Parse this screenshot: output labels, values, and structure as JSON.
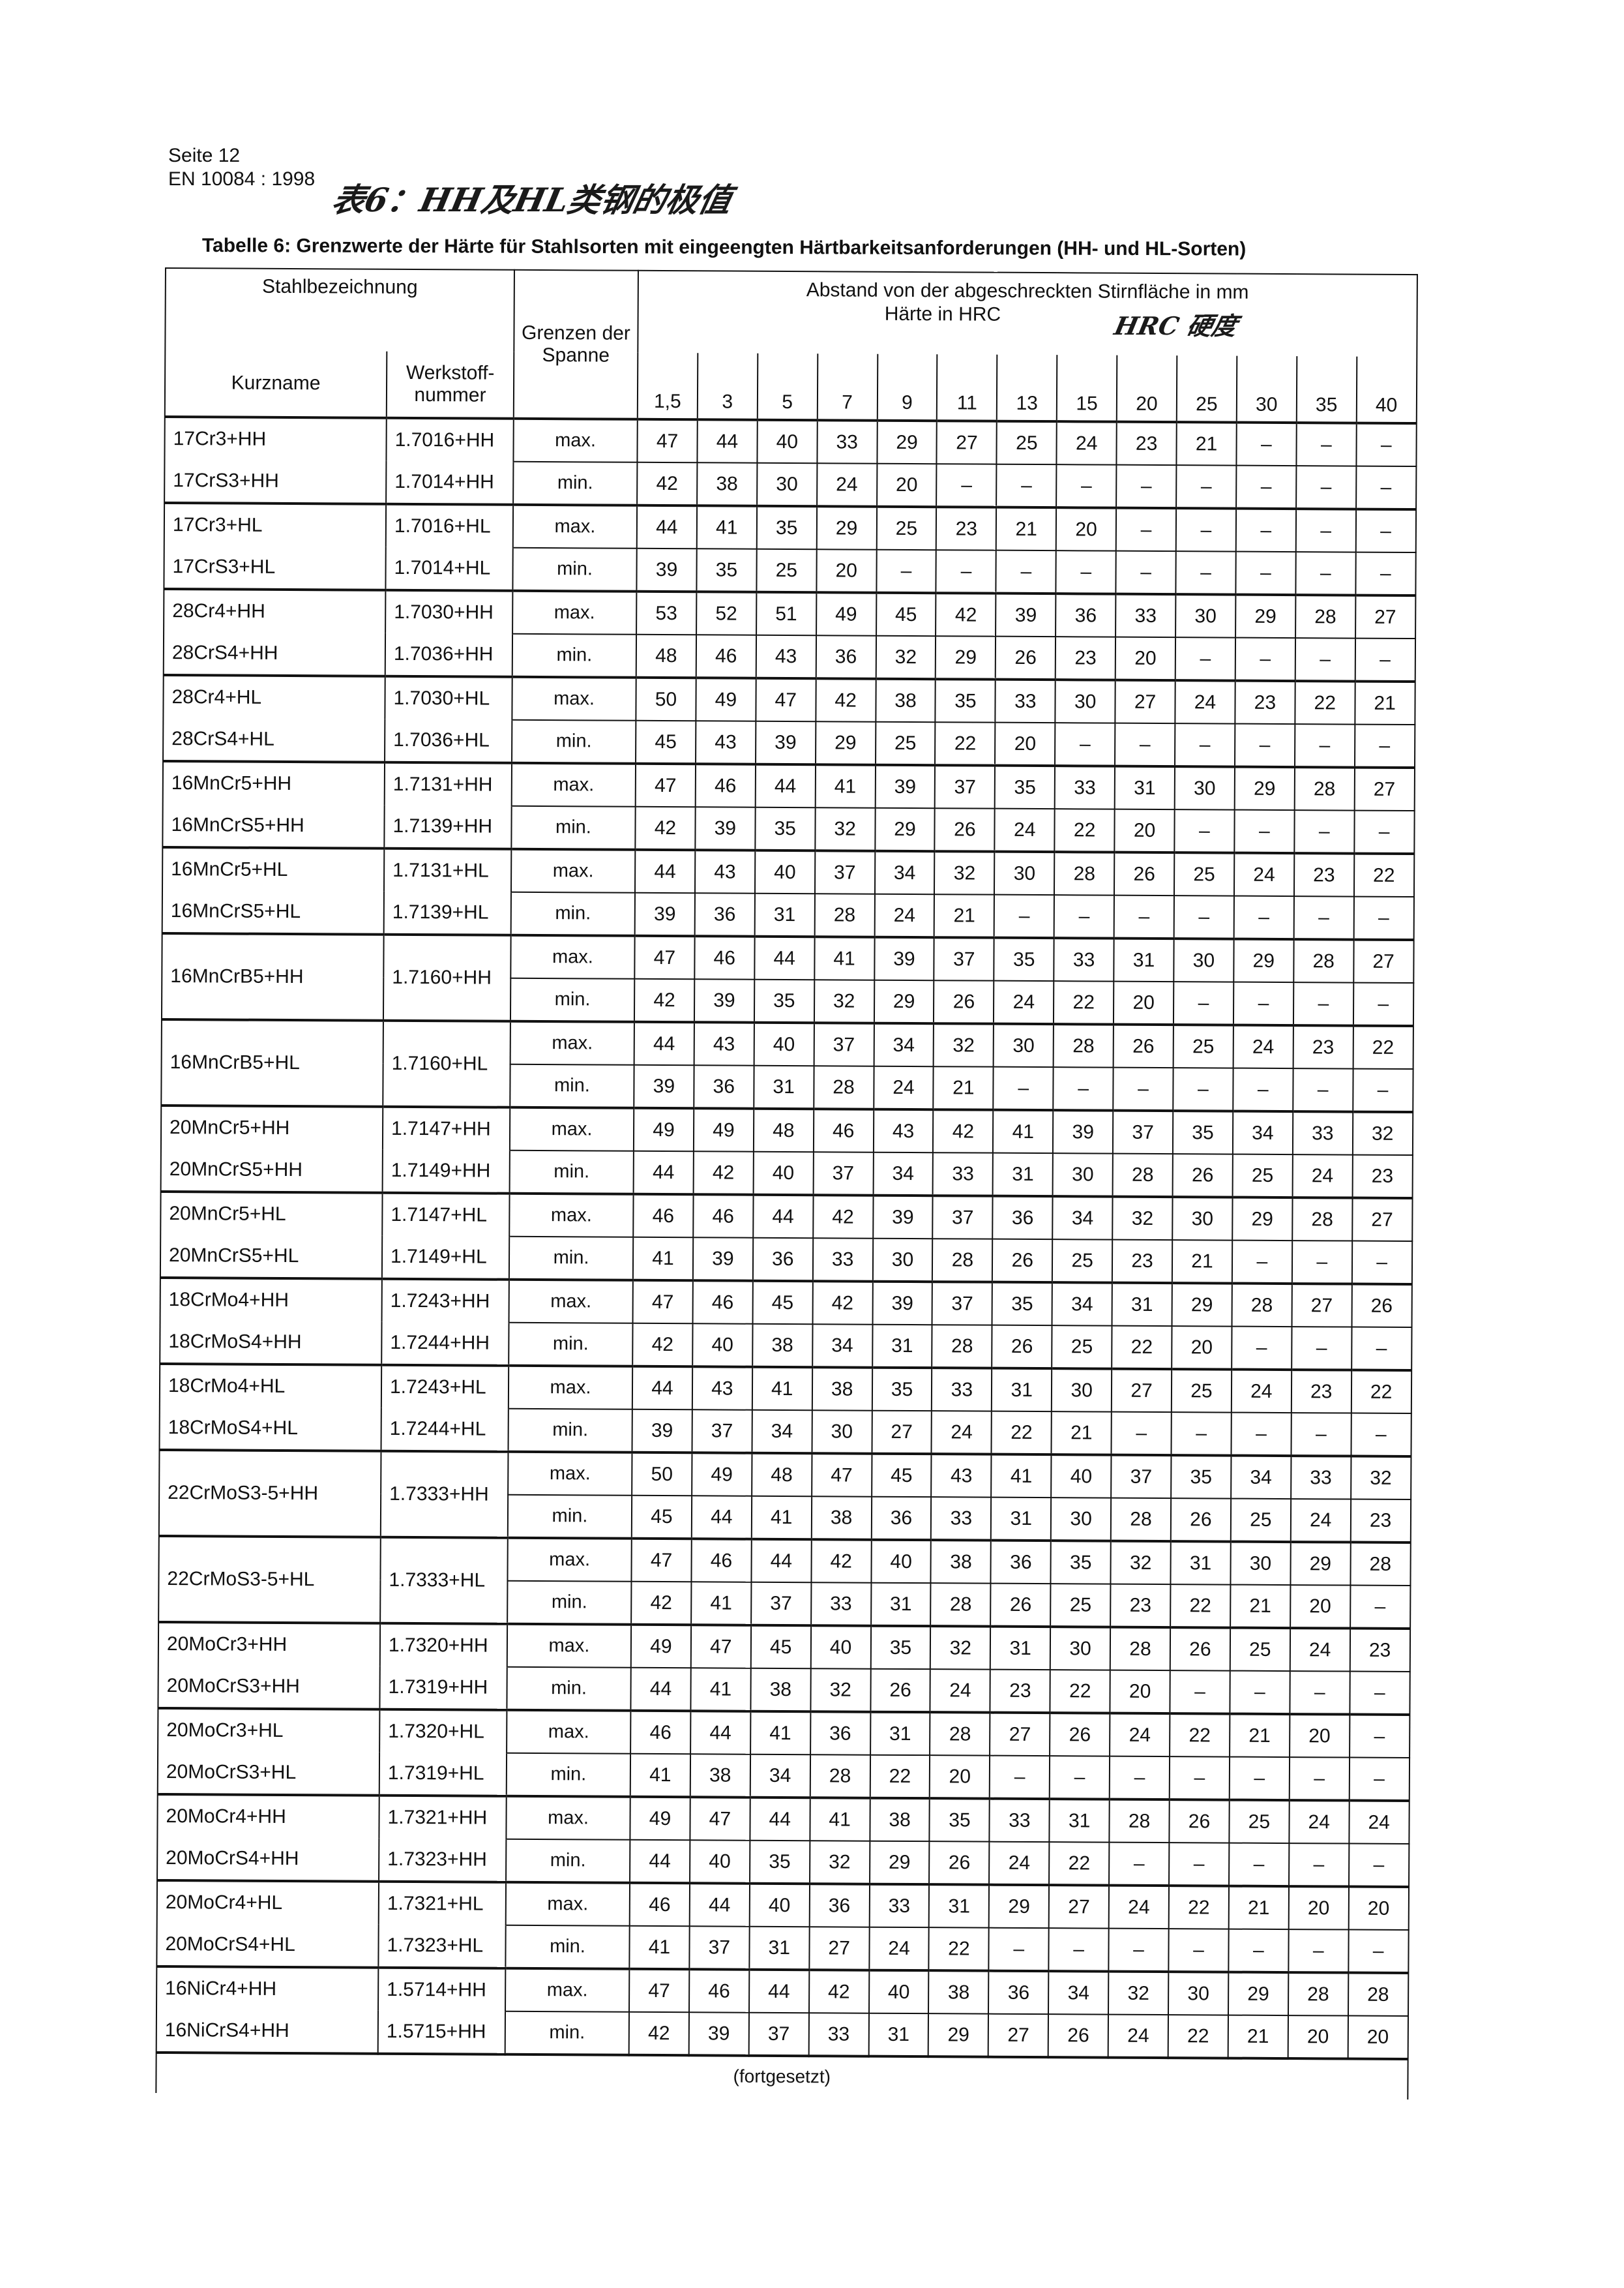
{
  "header": {
    "page": "Seite 12",
    "standard": "EN 10084 : 1998"
  },
  "handwritten": {
    "title": "表6：HH及HL类钢的极值",
    "hrc_note": "HRC 硬度"
  },
  "caption": "Tabelle 6:  Grenzwerte der Härte für Stahlsorten mit eingeengten Härtbarkeitsanforderungen (HH- und HL-Sorten)",
  "table": {
    "col_stahl": "Stahlbezeichnung",
    "col_kurzname": "Kurzname",
    "col_werkstoff": "Werkstoff-nummer",
    "col_grenzen": "Grenzen der Spanne",
    "col_abstand": "Abstand von der abgeschreckten Stirnfläche in mm",
    "col_haerte": "Härte in HRC",
    "distances": [
      "1,5",
      "3",
      "5",
      "7",
      "9",
      "11",
      "13",
      "15",
      "20",
      "25",
      "30",
      "35",
      "40"
    ],
    "max_label": "max.",
    "min_label": "min.",
    "groups": [
      {
        "names": [
          "17Cr3+HH",
          "17CrS3+HH"
        ],
        "numbers": [
          "1.7016+HH",
          "1.7014+HH"
        ],
        "max": [
          "47",
          "44",
          "40",
          "33",
          "29",
          "27",
          "25",
          "24",
          "23",
          "21",
          "–",
          "–",
          "–"
        ],
        "min": [
          "42",
          "38",
          "30",
          "24",
          "20",
          "–",
          "–",
          "–",
          "–",
          "–",
          "–",
          "–",
          "–"
        ]
      },
      {
        "names": [
          "17Cr3+HL",
          "17CrS3+HL"
        ],
        "numbers": [
          "1.7016+HL",
          "1.7014+HL"
        ],
        "max": [
          "44",
          "41",
          "35",
          "29",
          "25",
          "23",
          "21",
          "20",
          "–",
          "–",
          "–",
          "–",
          "–"
        ],
        "min": [
          "39",
          "35",
          "25",
          "20",
          "–",
          "–",
          "–",
          "–",
          "–",
          "–",
          "–",
          "–",
          "–"
        ]
      },
      {
        "names": [
          "28Cr4+HH",
          "28CrS4+HH"
        ],
        "numbers": [
          "1.7030+HH",
          "1.7036+HH"
        ],
        "max": [
          "53",
          "52",
          "51",
          "49",
          "45",
          "42",
          "39",
          "36",
          "33",
          "30",
          "29",
          "28",
          "27"
        ],
        "min": [
          "48",
          "46",
          "43",
          "36",
          "32",
          "29",
          "26",
          "23",
          "20",
          "–",
          "–",
          "–",
          "–"
        ]
      },
      {
        "names": [
          "28Cr4+HL",
          "28CrS4+HL"
        ],
        "numbers": [
          "1.7030+HL",
          "1.7036+HL"
        ],
        "max": [
          "50",
          "49",
          "47",
          "42",
          "38",
          "35",
          "33",
          "30",
          "27",
          "24",
          "23",
          "22",
          "21"
        ],
        "min": [
          "45",
          "43",
          "39",
          "29",
          "25",
          "22",
          "20",
          "–",
          "–",
          "–",
          "–",
          "–",
          "–"
        ]
      },
      {
        "names": [
          "16MnCr5+HH",
          "16MnCrS5+HH"
        ],
        "numbers": [
          "1.7131+HH",
          "1.7139+HH"
        ],
        "max": [
          "47",
          "46",
          "44",
          "41",
          "39",
          "37",
          "35",
          "33",
          "31",
          "30",
          "29",
          "28",
          "27"
        ],
        "min": [
          "42",
          "39",
          "35",
          "32",
          "29",
          "26",
          "24",
          "22",
          "20",
          "–",
          "–",
          "–",
          "–"
        ]
      },
      {
        "names": [
          "16MnCr5+HL",
          "16MnCrS5+HL"
        ],
        "numbers": [
          "1.7131+HL",
          "1.7139+HL"
        ],
        "max": [
          "44",
          "43",
          "40",
          "37",
          "34",
          "32",
          "30",
          "28",
          "26",
          "25",
          "24",
          "23",
          "22"
        ],
        "min": [
          "39",
          "36",
          "31",
          "28",
          "24",
          "21",
          "–",
          "–",
          "–",
          "–",
          "–",
          "–",
          "–"
        ]
      },
      {
        "names": [
          "16MnCrB5+HH"
        ],
        "numbers": [
          "1.7160+HH"
        ],
        "max": [
          "47",
          "46",
          "44",
          "41",
          "39",
          "37",
          "35",
          "33",
          "31",
          "30",
          "29",
          "28",
          "27"
        ],
        "min": [
          "42",
          "39",
          "35",
          "32",
          "29",
          "26",
          "24",
          "22",
          "20",
          "–",
          "–",
          "–",
          "–"
        ]
      },
      {
        "names": [
          "16MnCrB5+HL"
        ],
        "numbers": [
          "1.7160+HL"
        ],
        "max": [
          "44",
          "43",
          "40",
          "37",
          "34",
          "32",
          "30",
          "28",
          "26",
          "25",
          "24",
          "23",
          "22"
        ],
        "min": [
          "39",
          "36",
          "31",
          "28",
          "24",
          "21",
          "–",
          "–",
          "–",
          "–",
          "–",
          "–",
          "–"
        ]
      },
      {
        "names": [
          "20MnCr5+HH",
          "20MnCrS5+HH"
        ],
        "numbers": [
          "1.7147+HH",
          "1.7149+HH"
        ],
        "max": [
          "49",
          "49",
          "48",
          "46",
          "43",
          "42",
          "41",
          "39",
          "37",
          "35",
          "34",
          "33",
          "32"
        ],
        "min": [
          "44",
          "42",
          "40",
          "37",
          "34",
          "33",
          "31",
          "30",
          "28",
          "26",
          "25",
          "24",
          "23"
        ]
      },
      {
        "names": [
          "20MnCr5+HL",
          "20MnCrS5+HL"
        ],
        "numbers": [
          "1.7147+HL",
          "1.7149+HL"
        ],
        "max": [
          "46",
          "46",
          "44",
          "42",
          "39",
          "37",
          "36",
          "34",
          "32",
          "30",
          "29",
          "28",
          "27"
        ],
        "min": [
          "41",
          "39",
          "36",
          "33",
          "30",
          "28",
          "26",
          "25",
          "23",
          "21",
          "–",
          "–",
          "–"
        ]
      },
      {
        "names": [
          "18CrMo4+HH",
          "18CrMoS4+HH"
        ],
        "numbers": [
          "1.7243+HH",
          "1.7244+HH"
        ],
        "max": [
          "47",
          "46",
          "45",
          "42",
          "39",
          "37",
          "35",
          "34",
          "31",
          "29",
          "28",
          "27",
          "26"
        ],
        "min": [
          "42",
          "40",
          "38",
          "34",
          "31",
          "28",
          "26",
          "25",
          "22",
          "20",
          "–",
          "–",
          "–"
        ]
      },
      {
        "names": [
          "18CrMo4+HL",
          "18CrMoS4+HL"
        ],
        "numbers": [
          "1.7243+HL",
          "1.7244+HL"
        ],
        "max": [
          "44",
          "43",
          "41",
          "38",
          "35",
          "33",
          "31",
          "30",
          "27",
          "25",
          "24",
          "23",
          "22"
        ],
        "min": [
          "39",
          "37",
          "34",
          "30",
          "27",
          "24",
          "22",
          "21",
          "–",
          "–",
          "–",
          "–",
          "–"
        ]
      },
      {
        "names": [
          "22CrMoS3-5+HH"
        ],
        "numbers": [
          "1.7333+HH"
        ],
        "max": [
          "50",
          "49",
          "48",
          "47",
          "45",
          "43",
          "41",
          "40",
          "37",
          "35",
          "34",
          "33",
          "32"
        ],
        "min": [
          "45",
          "44",
          "41",
          "38",
          "36",
          "33",
          "31",
          "30",
          "28",
          "26",
          "25",
          "24",
          "23"
        ]
      },
      {
        "names": [
          "22CrMoS3-5+HL"
        ],
        "numbers": [
          "1.7333+HL"
        ],
        "max": [
          "47",
          "46",
          "44",
          "42",
          "40",
          "38",
          "36",
          "35",
          "32",
          "31",
          "30",
          "29",
          "28"
        ],
        "min": [
          "42",
          "41",
          "37",
          "33",
          "31",
          "28",
          "26",
          "25",
          "23",
          "22",
          "21",
          "20",
          "–"
        ]
      },
      {
        "names": [
          "20MoCr3+HH",
          "20MoCrS3+HH"
        ],
        "numbers": [
          "1.7320+HH",
          "1.7319+HH"
        ],
        "max": [
          "49",
          "47",
          "45",
          "40",
          "35",
          "32",
          "31",
          "30",
          "28",
          "26",
          "25",
          "24",
          "23"
        ],
        "min": [
          "44",
          "41",
          "38",
          "32",
          "26",
          "24",
          "23",
          "22",
          "20",
          "–",
          "–",
          "–",
          "–"
        ]
      },
      {
        "names": [
          "20MoCr3+HL",
          "20MoCrS3+HL"
        ],
        "numbers": [
          "1.7320+HL",
          "1.7319+HL"
        ],
        "max": [
          "46",
          "44",
          "41",
          "36",
          "31",
          "28",
          "27",
          "26",
          "24",
          "22",
          "21",
          "20",
          "–"
        ],
        "min": [
          "41",
          "38",
          "34",
          "28",
          "22",
          "20",
          "–",
          "–",
          "–",
          "–",
          "–",
          "–",
          "–"
        ]
      },
      {
        "names": [
          "20MoCr4+HH",
          "20MoCrS4+HH"
        ],
        "numbers": [
          "1.7321+HH",
          "1.7323+HH"
        ],
        "max": [
          "49",
          "47",
          "44",
          "41",
          "38",
          "35",
          "33",
          "31",
          "28",
          "26",
          "25",
          "24",
          "24"
        ],
        "min": [
          "44",
          "40",
          "35",
          "32",
          "29",
          "26",
          "24",
          "22",
          "–",
          "–",
          "–",
          "–",
          "–"
        ]
      },
      {
        "names": [
          "20MoCr4+HL",
          "20MoCrS4+HL"
        ],
        "numbers": [
          "1.7321+HL",
          "1.7323+HL"
        ],
        "max": [
          "46",
          "44",
          "40",
          "36",
          "33",
          "31",
          "29",
          "27",
          "24",
          "22",
          "21",
          "20",
          "20"
        ],
        "min": [
          "41",
          "37",
          "31",
          "27",
          "24",
          "22",
          "–",
          "–",
          "–",
          "–",
          "–",
          "–",
          "–"
        ]
      },
      {
        "names": [
          "16NiCr4+HH",
          "16NiCrS4+HH"
        ],
        "numbers": [
          "1.5714+HH",
          "1.5715+HH"
        ],
        "max": [
          "47",
          "46",
          "44",
          "42",
          "40",
          "38",
          "36",
          "34",
          "32",
          "30",
          "29",
          "28",
          "28"
        ],
        "min": [
          "42",
          "39",
          "37",
          "33",
          "31",
          "29",
          "27",
          "26",
          "24",
          "22",
          "21",
          "20",
          "20"
        ]
      }
    ],
    "footer": "(fortgesetzt)"
  }
}
